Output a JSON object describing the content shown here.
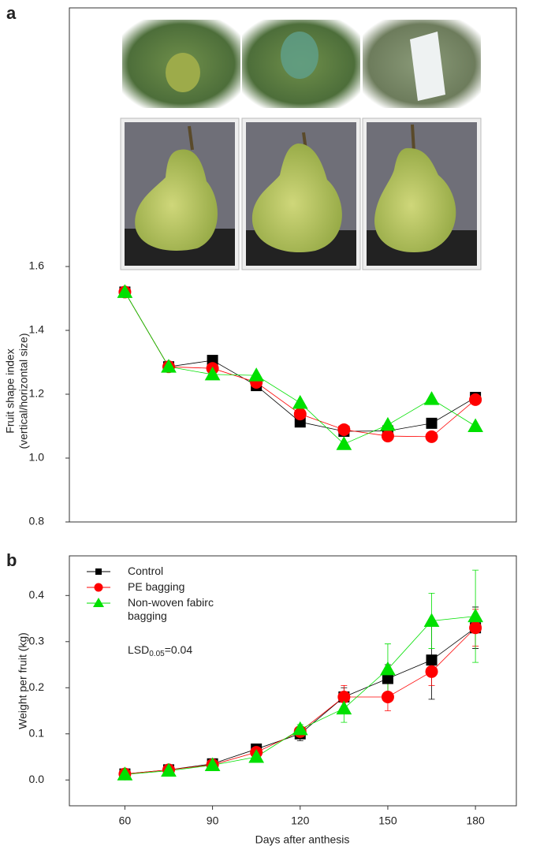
{
  "chart_data": [
    {
      "type": "line",
      "panel_label": "a",
      "ylabel": "Fruit shape index",
      "ylabel_sub": "(vertical/horizontal size)",
      "x": [
        60,
        75,
        90,
        105,
        120,
        135,
        150,
        165,
        180
      ],
      "xlim": [
        41,
        194
      ],
      "ylim": [
        0.8,
        2.41
      ],
      "yticks": [
        {
          "value": 0.8,
          "label": "0.8"
        },
        {
          "value": 1.0,
          "label": "1.0"
        },
        {
          "value": 1.2,
          "label": "1.2"
        },
        {
          "value": 1.4,
          "label": "1.4"
        },
        {
          "value": 1.6,
          "label": "1.6"
        }
      ],
      "series": [
        {
          "name": "Control",
          "color": "#000000",
          "marker": "square",
          "values": [
            1.52,
            1.286,
            1.306,
            1.227,
            1.113,
            1.084,
            1.085,
            1.109,
            1.19
          ]
        },
        {
          "name": "PE bagging",
          "color": "#ff0000",
          "marker": "circle",
          "values": [
            1.52,
            1.286,
            1.281,
            1.237,
            1.138,
            1.089,
            1.069,
            1.067,
            1.183
          ]
        },
        {
          "name": "Non-woven fabirc bagging",
          "color": "#00e000",
          "marker": "triangle",
          "values": [
            1.52,
            1.286,
            1.262,
            1.259,
            1.173,
            1.044,
            1.104,
            1.185,
            1.1
          ]
        }
      ]
    },
    {
      "type": "line",
      "panel_label": "b",
      "xlabel": "Days after anthesis",
      "ylabel": "Weight per fruit (kg)",
      "x": [
        60,
        75,
        90,
        105,
        120,
        135,
        150,
        165,
        180
      ],
      "xlim": [
        41,
        194
      ],
      "xticks": [
        60,
        90,
        120,
        150,
        180
      ],
      "ylim": [
        -0.056,
        0.486
      ],
      "yticks": [
        {
          "value": 0,
          "label": "0.0"
        },
        0.1,
        0.2,
        0.3,
        0.4
      ],
      "annotation_parts": [
        "LSD",
        "0.05",
        "=0.04"
      ],
      "series": [
        {
          "name": "Control",
          "color": "#000000",
          "marker": "square",
          "values": [
            0.013,
            0.022,
            0.035,
            0.067,
            0.1,
            0.18,
            0.22,
            0.26,
            0.33
          ],
          "errors": [
            0.005,
            0.005,
            0.005,
            0.01,
            0.015,
            0.02,
            0.03,
            0.085,
            0.045
          ]
        },
        {
          "name": "PE bagging",
          "color": "#ff0000",
          "marker": "circle",
          "values": [
            0.013,
            0.022,
            0.033,
            0.06,
            0.105,
            0.18,
            0.18,
            0.235,
            0.33
          ],
          "errors": [
            0.005,
            0.005,
            0.005,
            0.01,
            0.01,
            0.025,
            0.03,
            0.03,
            0.04
          ]
        },
        {
          "name": "Non-woven fabirc bagging",
          "color": "#00e000",
          "marker": "triangle",
          "values": [
            0.012,
            0.02,
            0.032,
            0.05,
            0.11,
            0.155,
            0.24,
            0.345,
            0.355
          ],
          "errors": [
            0.005,
            0.005,
            0.005,
            0.01,
            0.01,
            0.03,
            0.055,
            0.06,
            0.1
          ]
        }
      ]
    }
  ]
}
